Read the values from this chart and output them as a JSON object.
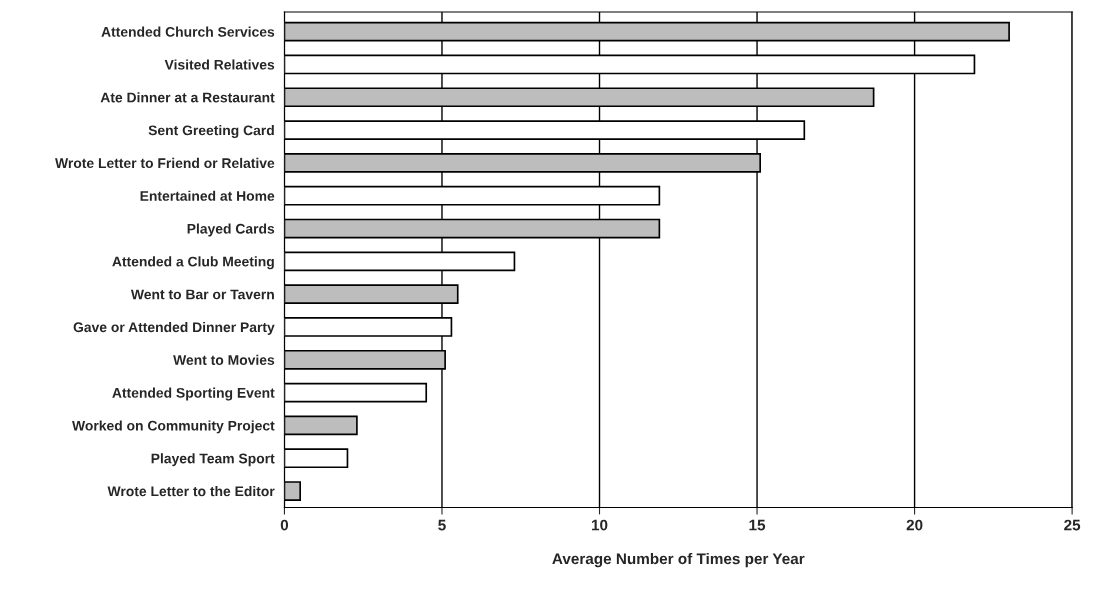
{
  "chart_data": {
    "type": "bar",
    "orientation": "horizontal",
    "xlabel": "Average Number of Times per Year",
    "categories": [
      "Attended Church Services",
      "Visited Relatives",
      "Ate Dinner at a Restaurant",
      "Sent Greeting Card",
      "Wrote Letter to Friend or Relative",
      "Entertained at Home",
      "Played Cards",
      "Attended a Club Meeting",
      "Went to Bar or Tavern",
      "Gave or Attended Dinner Party",
      "Went to Movies",
      "Attended Sporting Event",
      "Worked on Community Project",
      "Played Team Sport",
      "Wrote Letter to the Editor"
    ],
    "values": [
      23.0,
      21.9,
      18.7,
      16.5,
      15.1,
      11.9,
      11.9,
      7.3,
      5.5,
      5.3,
      5.1,
      4.5,
      2.3,
      2.0,
      0.5
    ],
    "colors": [
      "#bdbdbd",
      "#ffffff",
      "#bdbdbd",
      "#ffffff",
      "#bdbdbd",
      "#ffffff",
      "#bdbdbd",
      "#ffffff",
      "#bdbdbd",
      "#ffffff",
      "#bdbdbd",
      "#ffffff",
      "#bdbdbd",
      "#ffffff",
      "#bdbdbd"
    ],
    "xlim": [
      0,
      25
    ],
    "xticks": [
      0,
      5,
      10,
      15,
      20,
      25
    ],
    "grid": "x"
  }
}
